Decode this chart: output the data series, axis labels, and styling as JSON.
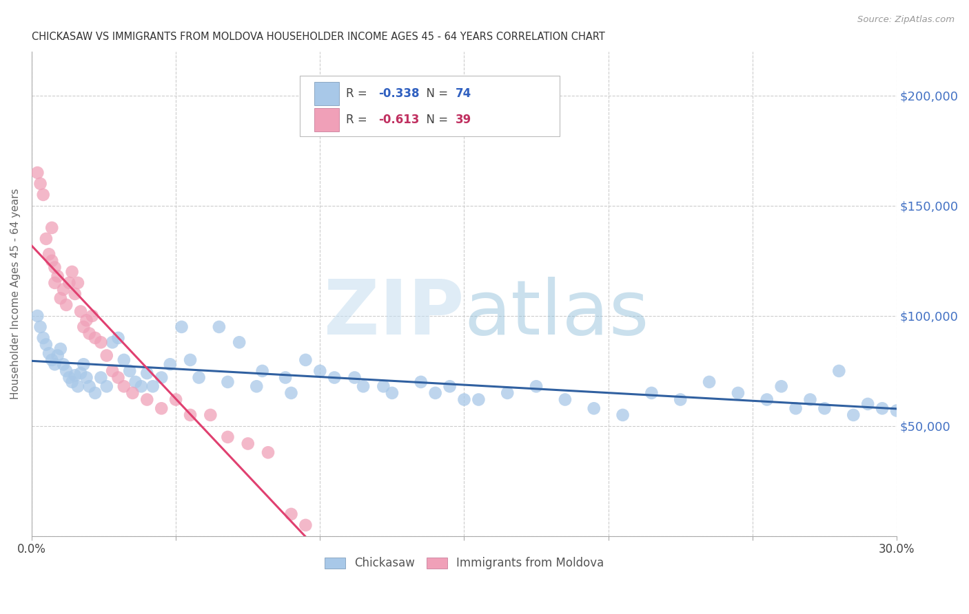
{
  "title": "CHICKASAW VS IMMIGRANTS FROM MOLDOVA HOUSEHOLDER INCOME AGES 45 - 64 YEARS CORRELATION CHART",
  "source": "Source: ZipAtlas.com",
  "ylabel": "Householder Income Ages 45 - 64 years",
  "watermark_zip": "ZIP",
  "watermark_atlas": "atlas",
  "xmin": 0.0,
  "xmax": 0.3,
  "ymin": 0,
  "ymax": 220000,
  "yticks": [
    0,
    50000,
    100000,
    150000,
    200000
  ],
  "ytick_labels": [
    "",
    "$50,000",
    "$100,000",
    "$150,000",
    "$200,000"
  ],
  "xticks": [
    0.0,
    0.05,
    0.1,
    0.15,
    0.2,
    0.25,
    0.3
  ],
  "xtick_labels": [
    "0.0%",
    "",
    "",
    "",
    "",
    "",
    "30.0%"
  ],
  "series1_label": "Chickasaw",
  "series1_R": "-0.338",
  "series1_N": "74",
  "series1_color": "#a8c8e8",
  "series1_line_color": "#3060a0",
  "series2_label": "Immigrants from Moldova",
  "series2_R": "-0.613",
  "series2_N": "39",
  "series2_color": "#f0a0b8",
  "series2_line_color": "#e04070",
  "background_color": "#ffffff",
  "grid_color": "#cccccc",
  "title_color": "#333333",
  "axis_label_color": "#666666",
  "ytick_label_color": "#4472c4",
  "source_color": "#999999",
  "chickasaw_x": [
    0.002,
    0.003,
    0.004,
    0.005,
    0.006,
    0.007,
    0.008,
    0.009,
    0.01,
    0.011,
    0.012,
    0.013,
    0.014,
    0.015,
    0.016,
    0.017,
    0.018,
    0.019,
    0.02,
    0.022,
    0.024,
    0.026,
    0.028,
    0.03,
    0.032,
    0.034,
    0.036,
    0.038,
    0.04,
    0.042,
    0.048,
    0.052,
    0.058,
    0.065,
    0.072,
    0.08,
    0.088,
    0.095,
    0.105,
    0.115,
    0.125,
    0.135,
    0.145,
    0.155,
    0.165,
    0.175,
    0.185,
    0.195,
    0.205,
    0.215,
    0.225,
    0.235,
    0.245,
    0.255,
    0.26,
    0.265,
    0.27,
    0.275,
    0.28,
    0.285,
    0.29,
    0.295,
    0.3,
    0.045,
    0.055,
    0.068,
    0.078,
    0.09,
    0.1,
    0.112,
    0.122,
    0.14,
    0.15
  ],
  "chickasaw_y": [
    100000,
    95000,
    90000,
    87000,
    83000,
    80000,
    78000,
    82000,
    85000,
    78000,
    75000,
    72000,
    70000,
    73000,
    68000,
    74000,
    78000,
    72000,
    68000,
    65000,
    72000,
    68000,
    88000,
    90000,
    80000,
    75000,
    70000,
    68000,
    74000,
    68000,
    78000,
    95000,
    72000,
    95000,
    88000,
    75000,
    72000,
    80000,
    72000,
    68000,
    65000,
    70000,
    68000,
    62000,
    65000,
    68000,
    62000,
    58000,
    55000,
    65000,
    62000,
    70000,
    65000,
    62000,
    68000,
    58000,
    62000,
    58000,
    75000,
    55000,
    60000,
    58000,
    57000,
    72000,
    80000,
    70000,
    68000,
    65000,
    75000,
    72000,
    68000,
    65000,
    62000
  ],
  "moldova_x": [
    0.002,
    0.003,
    0.004,
    0.005,
    0.006,
    0.007,
    0.007,
    0.008,
    0.008,
    0.009,
    0.01,
    0.011,
    0.012,
    0.013,
    0.014,
    0.015,
    0.016,
    0.017,
    0.018,
    0.019,
    0.02,
    0.021,
    0.022,
    0.024,
    0.026,
    0.028,
    0.03,
    0.032,
    0.035,
    0.04,
    0.045,
    0.05,
    0.055,
    0.062,
    0.068,
    0.075,
    0.082,
    0.09,
    0.095
  ],
  "moldova_y": [
    165000,
    160000,
    155000,
    135000,
    128000,
    140000,
    125000,
    122000,
    115000,
    118000,
    108000,
    112000,
    105000,
    115000,
    120000,
    110000,
    115000,
    102000,
    95000,
    98000,
    92000,
    100000,
    90000,
    88000,
    82000,
    75000,
    72000,
    68000,
    65000,
    62000,
    58000,
    62000,
    55000,
    55000,
    45000,
    42000,
    38000,
    10000,
    5000
  ]
}
